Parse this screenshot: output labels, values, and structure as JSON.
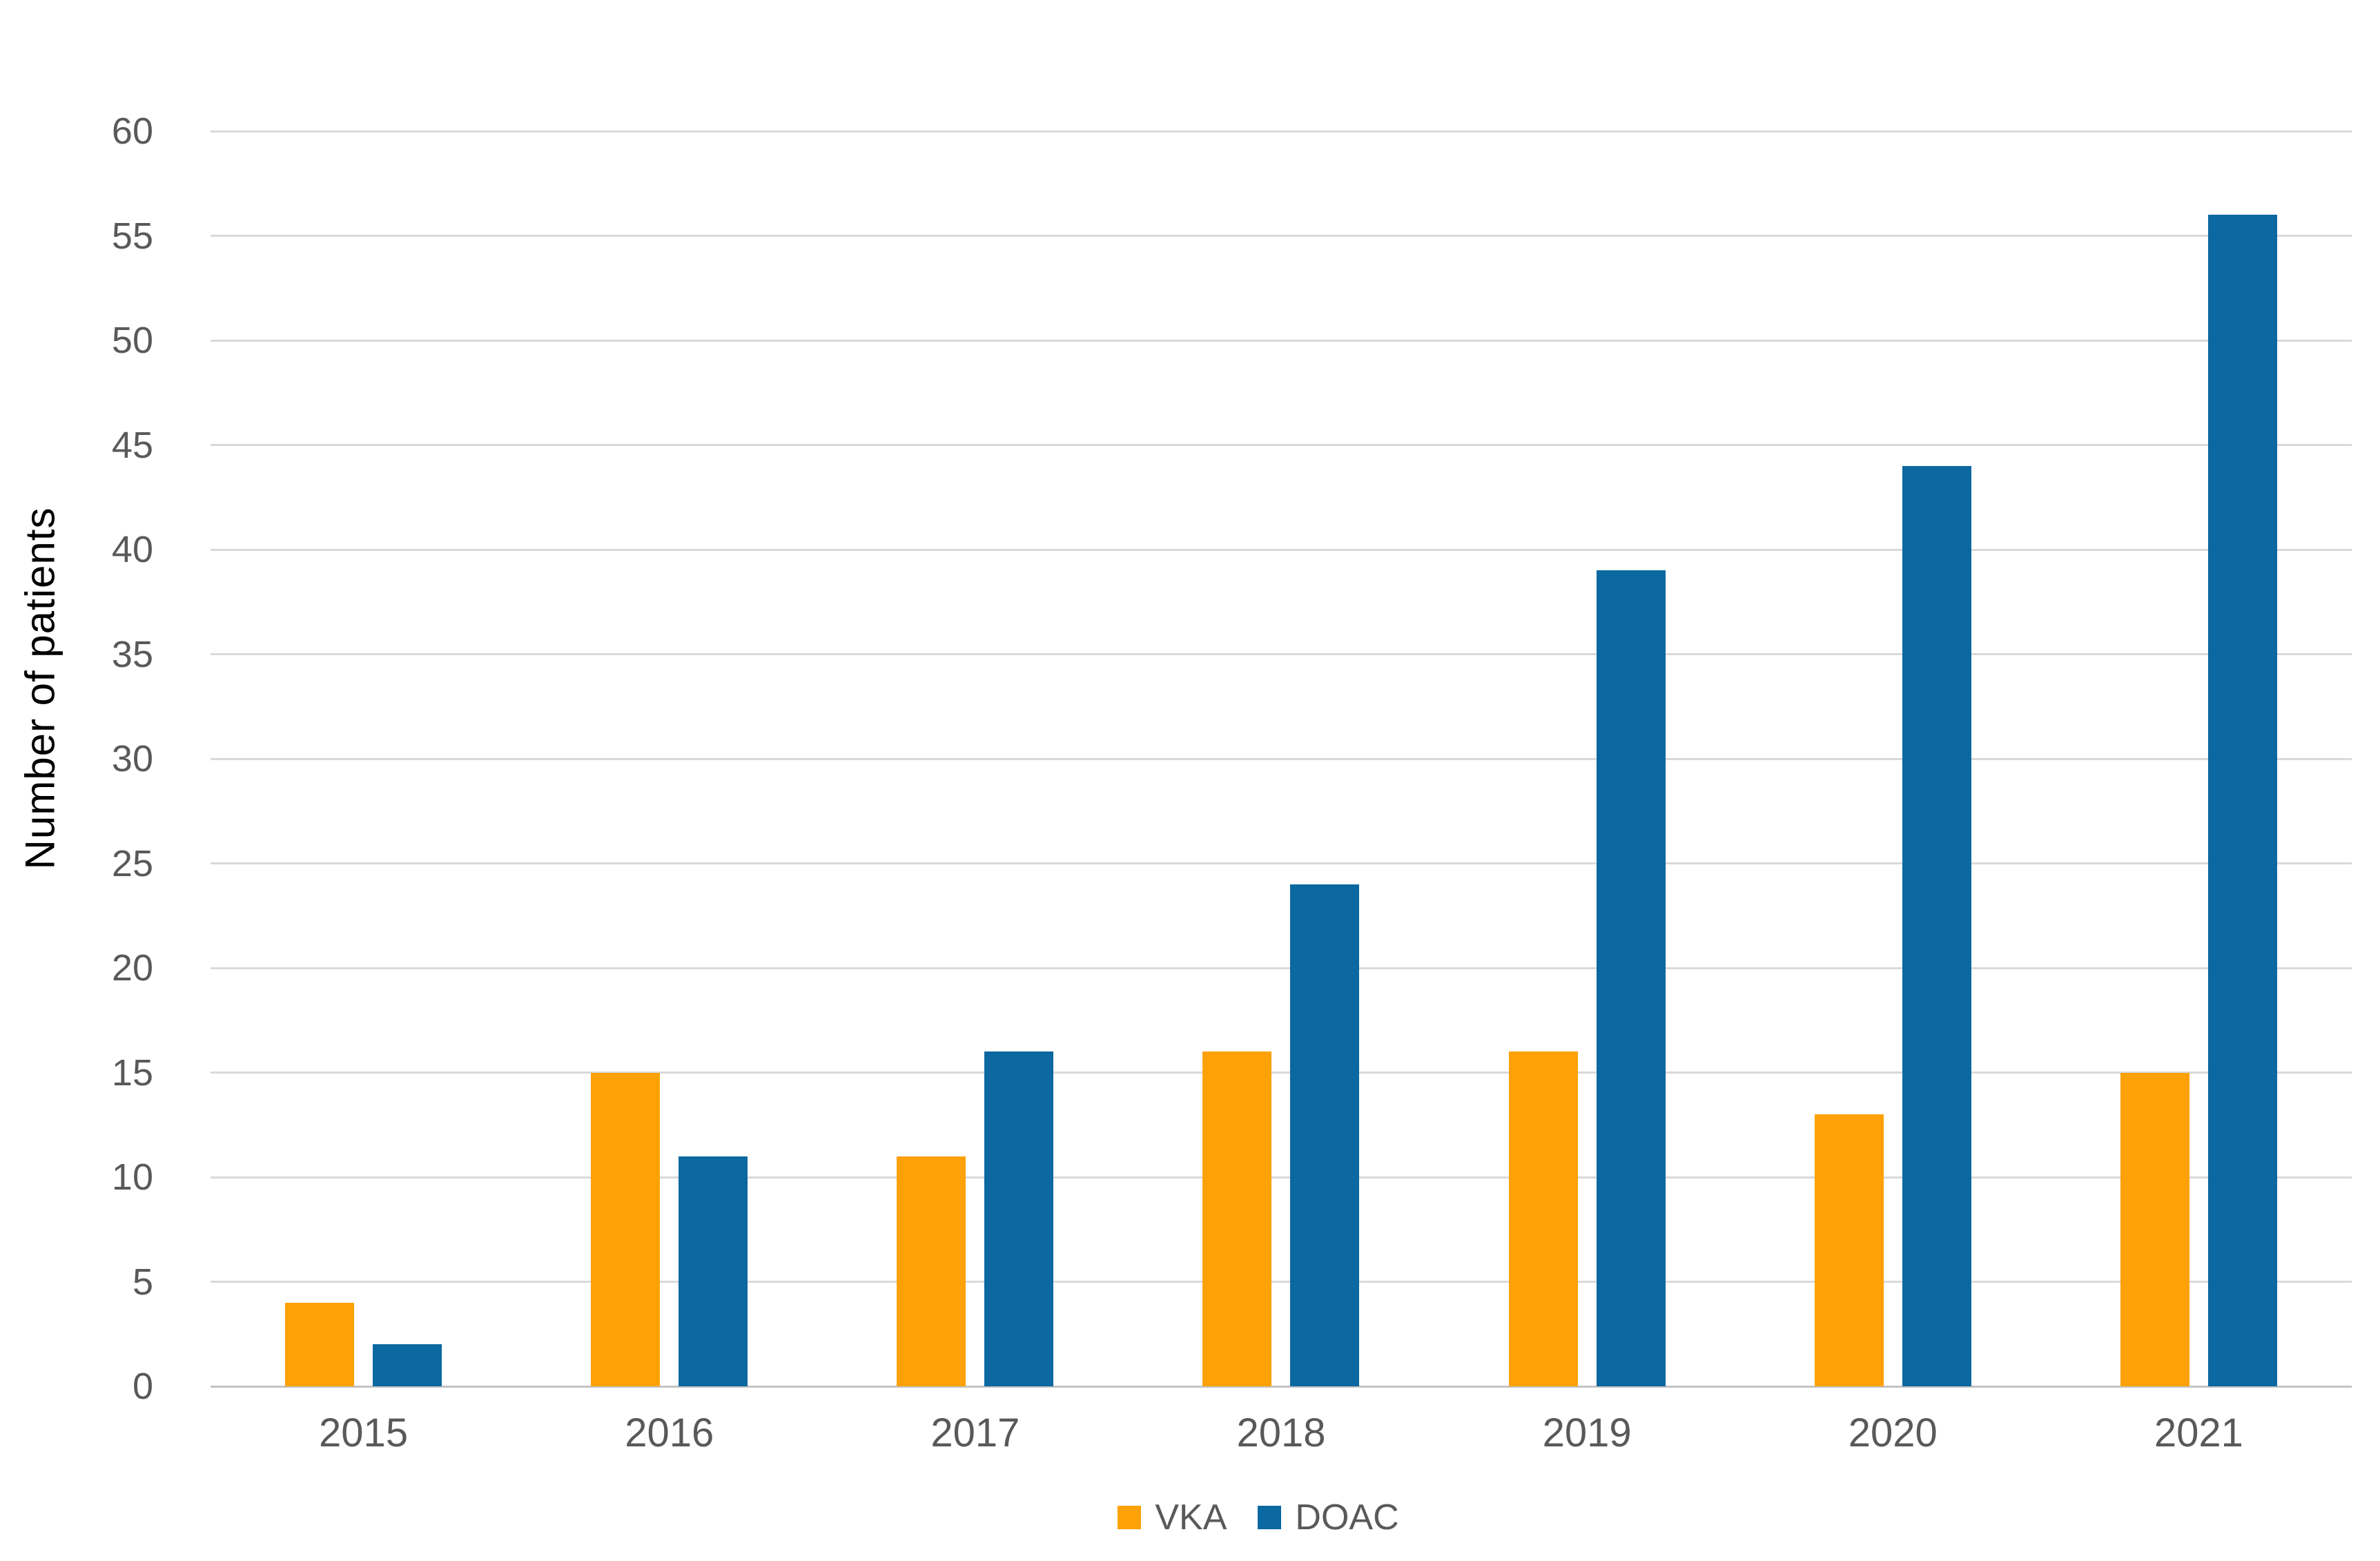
{
  "chart_data": {
    "type": "bar",
    "title": "",
    "categories": [
      "2015",
      "2016",
      "2017",
      "2018",
      "2019",
      "2020",
      "2021"
    ],
    "series": [
      {
        "name": "VKA",
        "color": "#FCA108",
        "values": [
          4,
          15,
          11,
          16,
          16,
          13,
          15
        ]
      },
      {
        "name": "DOAC",
        "color": "#0B68A0",
        "values": [
          2,
          11,
          16,
          24,
          39,
          44,
          56
        ]
      }
    ],
    "xlabel": "",
    "ylabel": "Number of patients",
    "ylim": [
      0,
      60
    ],
    "ytick_step": 5,
    "yticks": [
      "0",
      "5",
      "10",
      "15",
      "20",
      "25",
      "30",
      "35",
      "40",
      "45",
      "50",
      "55",
      "60"
    ],
    "grid": true,
    "legend_position": "bottom",
    "colors": {
      "gridline": "#d9d9d9",
      "axis_line": "#c3c3c3",
      "tick_label": "#595959",
      "axis_title": "#000000"
    }
  }
}
